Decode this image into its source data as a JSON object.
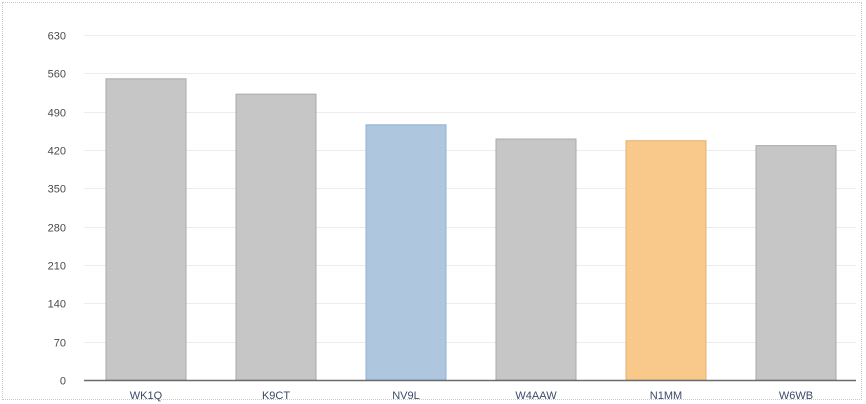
{
  "chart_data": {
    "type": "bar",
    "categories": [
      "WK1Q",
      "K9CT",
      "NV9L",
      "W4AAW",
      "N1MM",
      "W6WB"
    ],
    "values": [
      550,
      522,
      466,
      440,
      437,
      428
    ],
    "ylim": [
      0,
      630
    ],
    "yticks": [
      0,
      70,
      140,
      210,
      280,
      350,
      420,
      490,
      560,
      630
    ],
    "grid": true,
    "bar_colors": [
      "#c6c6c6",
      "#c6c6c6",
      "#aec6de",
      "#c6c6c6",
      "#f9c98c",
      "#c6c6c6"
    ],
    "bar_stroke_colors": [
      "#a9a9a9",
      "#a9a9a9",
      "#8fb0d0",
      "#a9a9a9",
      "#e6b070",
      "#a9a9a9"
    ],
    "axis_color": "#6b6b6b",
    "grid_color": "#ececec"
  }
}
